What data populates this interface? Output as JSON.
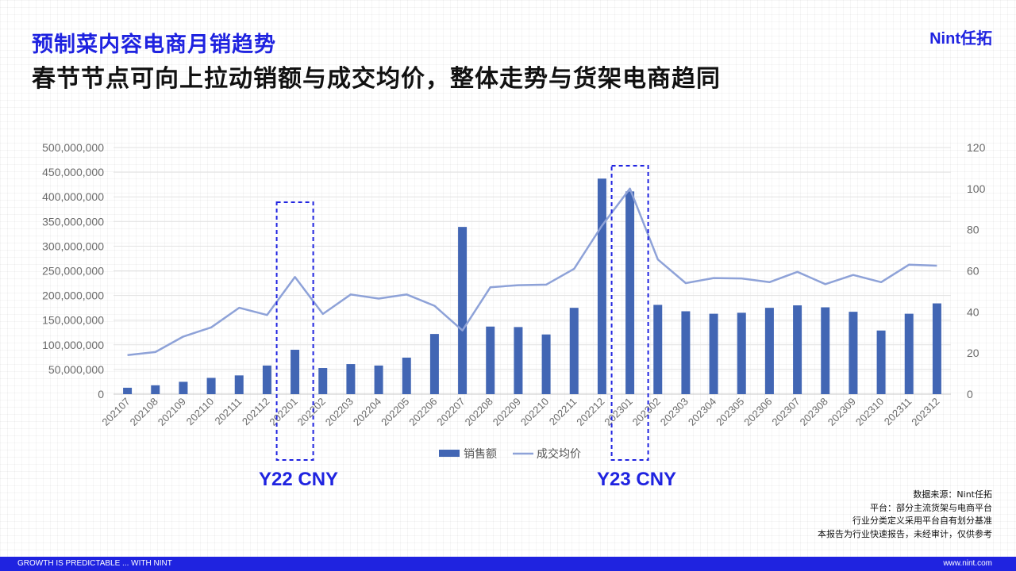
{
  "header": {
    "title": "预制菜内容电商月销趋势",
    "subtitle": "春节节点可向上拉动销额与成交均价，整体走势与货架电商趋同",
    "logo": "Nint任拓"
  },
  "annotations": {
    "cny_2022": "Y22 CNY",
    "cny_2023": "Y23 CNY"
  },
  "notes": {
    "source": "数据来源：Nint任拓",
    "platform": "平台：部分主流货架与电商平台",
    "category": "行业分类定义采用平台自有划分基准",
    "disclaimer": "本报告为行业快速报告，未经审计，仅供参考"
  },
  "footer": {
    "left": "GROWTH IS PREDICTABLE ... WITH NINT",
    "right": "www.nint.com"
  },
  "colors": {
    "bar": "#4266b4",
    "line": "#8ea2d8",
    "accent": "#1f23e0"
  },
  "chart_data": {
    "type": "bar",
    "categories": [
      "202107",
      "202108",
      "202109",
      "202110",
      "202111",
      "202112",
      "202201",
      "202202",
      "202203",
      "202204",
      "202205",
      "202206",
      "202207",
      "202208",
      "202209",
      "202210",
      "202211",
      "202212",
      "202301",
      "202302",
      "202303",
      "202304",
      "202305",
      "202306",
      "202307",
      "202308",
      "202309",
      "202310",
      "202311",
      "202312"
    ],
    "series": [
      {
        "name": "销售额",
        "type": "bar",
        "axis": "left",
        "values": [
          13000000,
          18000000,
          25000000,
          33000000,
          38000000,
          58000000,
          90000000,
          53000000,
          61000000,
          58000000,
          74000000,
          122000000,
          339000000,
          137000000,
          136000000,
          121000000,
          175000000,
          437000000,
          411000000,
          181000000,
          168000000,
          163000000,
          165000000,
          175000000,
          180000000,
          176000000,
          167000000,
          129000000,
          163000000,
          184000000
        ]
      },
      {
        "name": "成交均价",
        "type": "line",
        "axis": "right",
        "values": [
          19,
          20.5,
          28,
          32.5,
          42,
          38.5,
          57,
          39,
          48.5,
          46.5,
          48.5,
          43,
          31,
          52,
          53,
          53.3,
          61,
          82,
          100,
          65.5,
          54,
          56.5,
          56.3,
          54.5,
          59.5,
          53.5,
          58,
          54.5,
          63,
          62.5
        ]
      }
    ],
    "y_left": {
      "min": 0,
      "max": 500000000,
      "ticks": [
        0,
        50000000,
        100000000,
        150000000,
        200000000,
        250000000,
        300000000,
        350000000,
        400000000,
        450000000,
        500000000
      ]
    },
    "y_right": {
      "min": 0,
      "max": 120,
      "ticks": [
        0,
        20,
        40,
        60,
        80,
        100,
        120
      ]
    },
    "highlights": [
      "202201",
      "202301"
    ],
    "legend": "bottom-center",
    "grid": true
  }
}
